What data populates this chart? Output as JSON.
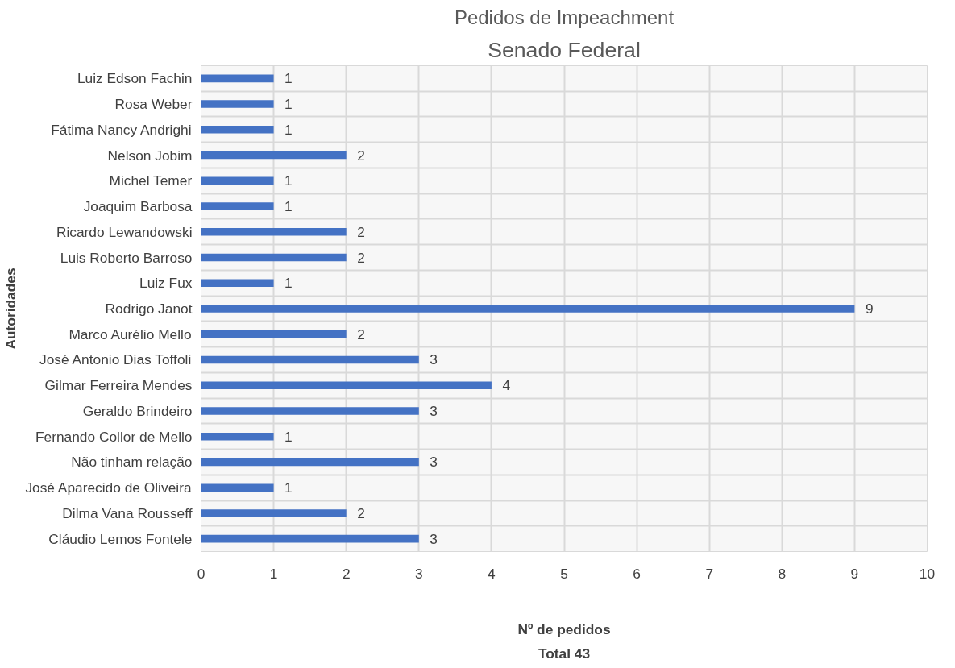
{
  "chart_data": {
    "type": "bar",
    "orientation": "horizontal",
    "title": "Pedidos de Impeachment",
    "subtitle": "Senado Federal",
    "ylabel": "Autoridades",
    "xlabel": "Nº de pedidos",
    "annotations": [
      "Total 43"
    ],
    "categories": [
      "Luiz Edson Fachin",
      "Rosa Weber",
      "Fátima Nancy Andrighi",
      "Nelson Jobim",
      "Michel Temer",
      "Joaquim Barbosa",
      "Ricardo Lewandowski",
      "Luis Roberto Barroso",
      "Luiz Fux",
      "Rodrigo Janot",
      "Marco Aurélio Mello",
      "José Antonio Dias Toffoli",
      "Gilmar Ferreira Mendes",
      "Geraldo Brindeiro",
      "Fernando Collor de Mello",
      "Não tinham relação",
      "José Aparecido de Oliveira",
      "Dilma Vana Rousseff",
      "Cláudio Lemos Fontele"
    ],
    "values": [
      1,
      1,
      1,
      2,
      1,
      1,
      2,
      2,
      1,
      9,
      2,
      3,
      4,
      3,
      1,
      3,
      1,
      2,
      3
    ],
    "color": "#4472c4",
    "xlim": [
      0,
      10
    ],
    "xticks": [
      0,
      1,
      2,
      3,
      4,
      5,
      6,
      7,
      8,
      9,
      10
    ],
    "grid": true,
    "data_labels": true
  }
}
